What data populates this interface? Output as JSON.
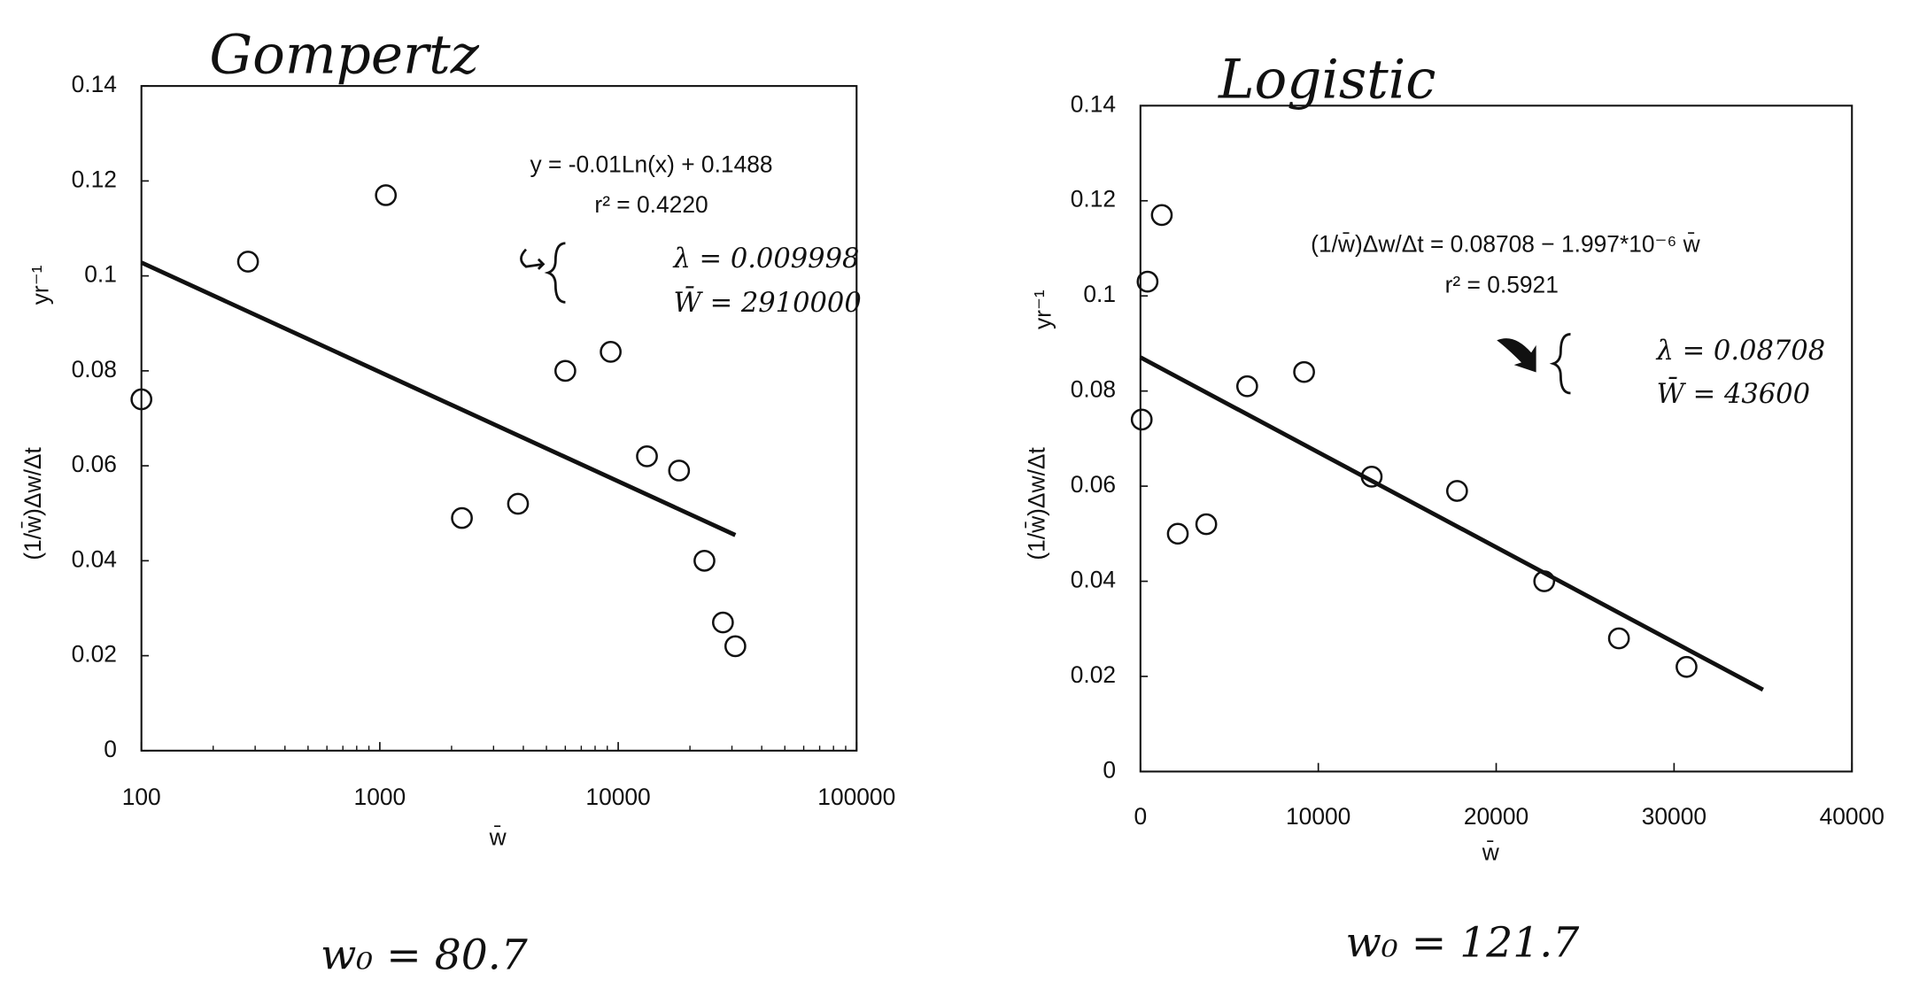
{
  "chart_data": [
    {
      "type": "scatter",
      "title": "Gompertz",
      "x_label": "w̄",
      "y_label": "(1/w̄)Δw/Δt",
      "y_unit": "yr⁻¹",
      "x_log": true,
      "xlim": [
        100,
        100000
      ],
      "ylim": [
        0,
        0.14
      ],
      "xticks": [
        100,
        1000,
        10000,
        100000
      ],
      "yticks": [
        0,
        0.02,
        0.04,
        0.06,
        0.08,
        0.1,
        0.12,
        0.14
      ],
      "x": [
        100,
        280,
        1060,
        2210,
        3800,
        6000,
        9300,
        13200,
        18000,
        23000,
        27500,
        31000
      ],
      "values": [
        0.074,
        0.103,
        0.117,
        0.049,
        0.052,
        0.08,
        0.084,
        0.062,
        0.059,
        0.04,
        0.027,
        0.022
      ],
      "trendline": {
        "x": [
          100,
          31000
        ],
        "values": [
          0.1028,
          0.0454
        ]
      },
      "annotations": [
        "y = -0.01Ln(x) + 0.1488",
        "r² = 0.4220",
        "λ = 0.009998",
        "W̄ = 2910000"
      ],
      "footnote": "w₀ = 80.7"
    },
    {
      "type": "scatter",
      "title": "Logistic",
      "x_label": "w̄",
      "y_label": "(1/w̄)Δw/Δt",
      "y_unit": "yr⁻¹",
      "x_log": false,
      "xlim": [
        0,
        40000
      ],
      "ylim": [
        0,
        0.14
      ],
      "xticks": [
        0,
        10000,
        20000,
        30000,
        40000
      ],
      "yticks": [
        0,
        0.02,
        0.04,
        0.06,
        0.08,
        0.1,
        0.12,
        0.14
      ],
      "x": [
        70,
        400,
        1200,
        2100,
        3700,
        6000,
        9200,
        13000,
        17800,
        22700,
        26900,
        30700
      ],
      "values": [
        0.074,
        0.103,
        0.117,
        0.05,
        0.052,
        0.081,
        0.084,
        0.062,
        0.059,
        0.04,
        0.028,
        0.022
      ],
      "trendline": {
        "x": [
          0,
          35000
        ],
        "values": [
          0.08708,
          0.0172
        ]
      },
      "annotations": [
        "(1/w̄)Δw/Δt = 0.08708 − 1.997*10⁻⁶ w̄",
        "r² = 0.5921",
        "λ = 0.08708",
        "W̄ = 43600"
      ],
      "footnote": "w₀ = 121.7"
    }
  ]
}
